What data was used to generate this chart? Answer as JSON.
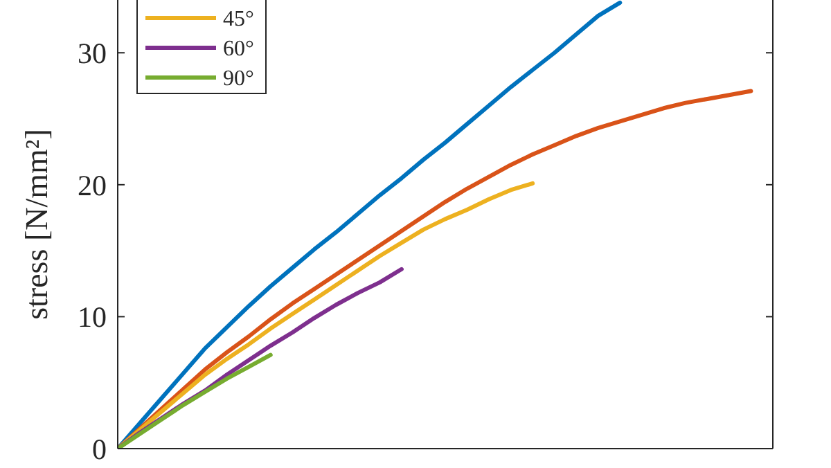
{
  "chart_data": {
    "type": "line",
    "ylabel": "stress [N/mm²]",
    "categories": [
      null,
      null,
      null,
      null,
      null,
      null,
      null,
      null,
      null,
      null,
      null,
      null,
      null,
      null,
      null,
      null,
      null,
      null,
      null,
      null,
      null,
      null,
      null,
      null,
      null,
      null,
      null,
      null,
      null,
      null,
      null
    ],
    "ylim": [
      0,
      34
    ],
    "yticks": [
      0,
      10,
      20,
      30
    ],
    "legend": "top left",
    "grid": false,
    "line_style": "solid",
    "marker": "none",
    "series": [
      {
        "color": "#0072bd",
        "values": [
          0,
          1.9,
          3.8,
          5.7,
          7.6,
          9.2,
          10.8,
          12.3,
          13.7,
          15.1,
          16.4,
          17.8,
          19.2,
          20.5,
          21.9,
          23.2,
          24.6,
          26.0,
          27.4,
          28.7,
          30.0,
          31.4,
          32.8,
          33.8,
          null,
          null,
          null,
          null,
          null,
          null,
          null
        ]
      },
      {
        "color": "#d95319",
        "values": [
          0,
          1.5,
          3.0,
          4.5,
          6.0,
          7.3,
          8.5,
          9.8,
          11.0,
          12.1,
          13.2,
          14.3,
          15.4,
          16.5,
          17.6,
          18.7,
          19.7,
          20.6,
          21.5,
          22.3,
          23.0,
          23.7,
          24.3,
          24.8,
          25.3,
          25.8,
          26.2,
          26.5,
          26.8,
          27.1,
          null
        ]
      },
      {
        "name": "45°",
        "color": "#edb120",
        "values": [
          0,
          1.4,
          2.8,
          4.2,
          5.6,
          6.8,
          7.9,
          9.1,
          10.2,
          11.3,
          12.4,
          13.5,
          14.6,
          15.6,
          16.6,
          17.4,
          18.1,
          18.9,
          19.6,
          20.1,
          null,
          null,
          null,
          null,
          null,
          null,
          null,
          null,
          null,
          null,
          null
        ]
      },
      {
        "name": "60°",
        "color": "#7e2f8e",
        "values": [
          0,
          1.2,
          2.3,
          3.4,
          4.4,
          5.6,
          6.7,
          7.8,
          8.8,
          9.9,
          10.9,
          11.8,
          12.6,
          13.6,
          null,
          null,
          null,
          null,
          null,
          null,
          null,
          null,
          null,
          null,
          null,
          null,
          null,
          null,
          null,
          null,
          null
        ]
      },
      {
        "name": "90°",
        "color": "#77ac30",
        "values": [
          0,
          1.1,
          2.2,
          3.3,
          4.3,
          5.3,
          6.2,
          7.1,
          null,
          null,
          null,
          null,
          null,
          null,
          null,
          null,
          null,
          null,
          null,
          null,
          null,
          null,
          null,
          null,
          null,
          null,
          null,
          null,
          null,
          null,
          null
        ]
      }
    ]
  }
}
